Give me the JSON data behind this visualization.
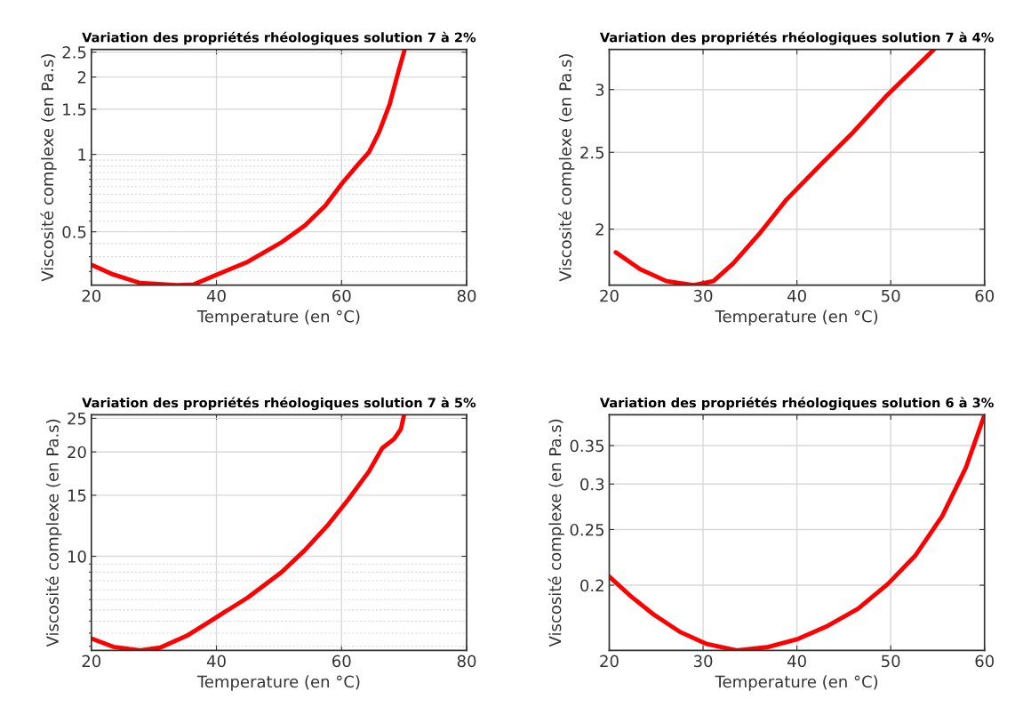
{
  "chart_data": [
    {
      "type": "line",
      "title": "Variation des propriétés rhéologiques solution 7 à 2%",
      "xlabel": "Temperature (en °C)",
      "ylabel": "Viscosité complexe (en Pa.s)",
      "log": true,
      "grid": true,
      "xlim": [
        20,
        80
      ],
      "xticks": [
        20,
        40,
        60,
        80
      ],
      "ylim": [
        0.31,
        2.56
      ],
      "yticks": [
        0.5,
        1,
        1.5,
        2,
        2.5
      ],
      "series": [
        {
          "color": "#ff0000",
          "x": [
            20,
            23.5,
            27.8,
            33.7,
            36.4,
            39.6,
            45,
            50.4,
            54.2,
            57.4,
            60.1,
            62.8,
            64.4,
            66,
            67.7,
            69,
            70.1
          ],
          "values": [
            0.372,
            0.341,
            0.316,
            0.31,
            0.312,
            0.337,
            0.382,
            0.455,
            0.53,
            0.632,
            0.773,
            0.923,
            1.02,
            1.22,
            1.57,
            2.06,
            2.56
          ]
        }
      ]
    },
    {
      "type": "line",
      "title": "Variation des propriétés rhéologiques solution 7 à 4%",
      "xlabel": "Temperature (en °C)",
      "ylabel": "Viscosité complexe (en Pa.s)",
      "log": true,
      "grid": true,
      "xlim": [
        20,
        60
      ],
      "xticks": [
        20,
        30,
        40,
        50,
        60
      ],
      "ylim": [
        1.7,
        3.37
      ],
      "yticks": [
        2,
        2.5,
        3
      ],
      "series": [
        {
          "color": "#ff0000",
          "x": [
            20.7,
            23.3,
            26.1,
            29,
            31.1,
            33.2,
            36.1,
            38.9,
            42.5,
            46,
            49.6,
            54.6
          ],
          "values": [
            1.87,
            1.78,
            1.72,
            1.7,
            1.72,
            1.81,
            1.98,
            2.18,
            2.41,
            2.65,
            2.95,
            3.37
          ]
        }
      ]
    },
    {
      "type": "line",
      "title": "Variation des propriétés rhéologiques solution 7 à 5%",
      "xlabel": "Temperature (en °C)",
      "ylabel": "Viscosité complexe (en Pa.s)",
      "log": true,
      "grid": true,
      "xlim": [
        20,
        80
      ],
      "xticks": [
        20,
        40,
        60,
        80
      ],
      "ylim": [
        5.35,
        25.6
      ],
      "yticks": [
        10,
        15,
        20,
        25
      ],
      "series": [
        {
          "color": "#ff0000",
          "x": [
            20,
            23.5,
            27.8,
            31,
            35.3,
            40,
            45,
            50.4,
            54.1,
            57.9,
            61.1,
            64.4,
            66.5,
            68.4,
            69.5,
            70
          ],
          "values": [
            5.79,
            5.48,
            5.35,
            5.45,
            5.9,
            6.67,
            7.6,
            8.99,
            10.4,
            12.35,
            14.6,
            17.6,
            20.5,
            21.8,
            23.3,
            25.6
          ]
        }
      ]
    },
    {
      "type": "line",
      "title": "Variation des propriétés rhéologiques solution 6 à 3%",
      "xlabel": "Temperature (en °C)",
      "ylabel": "Viscosité complexe (en Pa.s)",
      "log": true,
      "grid": true,
      "xlim": [
        20,
        60
      ],
      "xticks": [
        20,
        30,
        40,
        50,
        60
      ],
      "ylim": [
        0.154,
        0.396
      ],
      "yticks": [
        0.2,
        0.25,
        0.3,
        0.35
      ],
      "series": [
        {
          "color": "#ff0000",
          "x": [
            20,
            22.2,
            24.7,
            27.5,
            30.4,
            33.6,
            36.8,
            40,
            43.3,
            46.5,
            49.7,
            52.6,
            55.5,
            58,
            60
          ],
          "values": [
            0.207,
            0.192,
            0.178,
            0.166,
            0.158,
            0.154,
            0.156,
            0.161,
            0.17,
            0.182,
            0.201,
            0.225,
            0.264,
            0.32,
            0.396
          ]
        }
      ]
    }
  ]
}
